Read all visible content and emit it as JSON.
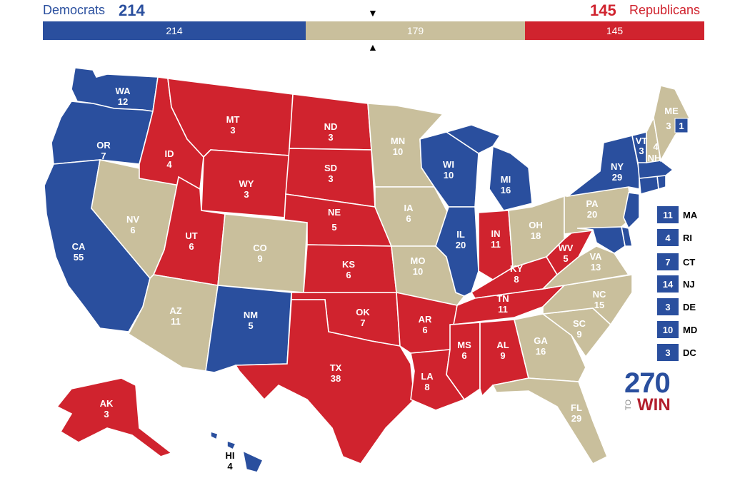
{
  "colors": {
    "dem": "#2a4f9e",
    "rep": "#d0232e",
    "tossup": "#c9bf9c"
  },
  "header": {
    "dem_label": "Democrats",
    "dem_total": "214",
    "rep_total": "145",
    "rep_label": "Republicans",
    "bar": {
      "dem": "214",
      "tossup": "179",
      "rep": "145"
    },
    "marker_top": "▼",
    "marker_bottom": "▲"
  },
  "states": {
    "WA": {
      "abbr": "WA",
      "ev": "12",
      "party": "dem"
    },
    "OR": {
      "abbr": "OR",
      "ev": "7",
      "party": "dem"
    },
    "CA": {
      "abbr": "CA",
      "ev": "55",
      "party": "dem"
    },
    "NV": {
      "abbr": "NV",
      "ev": "6",
      "party": "tossup"
    },
    "ID": {
      "abbr": "ID",
      "ev": "4",
      "party": "rep"
    },
    "MT": {
      "abbr": "MT",
      "ev": "3",
      "party": "rep"
    },
    "WY": {
      "abbr": "WY",
      "ev": "3",
      "party": "rep"
    },
    "UT": {
      "abbr": "UT",
      "ev": "6",
      "party": "rep"
    },
    "AZ": {
      "abbr": "AZ",
      "ev": "11",
      "party": "tossup"
    },
    "CO": {
      "abbr": "CO",
      "ev": "9",
      "party": "tossup"
    },
    "NM": {
      "abbr": "NM",
      "ev": "5",
      "party": "dem"
    },
    "ND": {
      "abbr": "ND",
      "ev": "3",
      "party": "rep"
    },
    "SD": {
      "abbr": "SD",
      "ev": "3",
      "party": "rep"
    },
    "NE": {
      "abbr": "NE",
      "ev": "5",
      "party": "rep"
    },
    "KS": {
      "abbr": "KS",
      "ev": "6",
      "party": "rep"
    },
    "OK": {
      "abbr": "OK",
      "ev": "7",
      "party": "rep"
    },
    "TX": {
      "abbr": "TX",
      "ev": "38",
      "party": "rep"
    },
    "MN": {
      "abbr": "MN",
      "ev": "10",
      "party": "tossup"
    },
    "IA": {
      "abbr": "IA",
      "ev": "6",
      "party": "tossup"
    },
    "MO": {
      "abbr": "MO",
      "ev": "10",
      "party": "tossup"
    },
    "AR": {
      "abbr": "AR",
      "ev": "6",
      "party": "rep"
    },
    "LA": {
      "abbr": "LA",
      "ev": "8",
      "party": "rep"
    },
    "WI": {
      "abbr": "WI",
      "ev": "10",
      "party": "dem"
    },
    "IL": {
      "abbr": "IL",
      "ev": "20",
      "party": "dem"
    },
    "MI": {
      "abbr": "MI",
      "ev": "16",
      "party": "dem"
    },
    "IN": {
      "abbr": "IN",
      "ev": "11",
      "party": "rep"
    },
    "OH": {
      "abbr": "OH",
      "ev": "18",
      "party": "tossup"
    },
    "KY": {
      "abbr": "KY",
      "ev": "8",
      "party": "rep"
    },
    "TN": {
      "abbr": "TN",
      "ev": "11",
      "party": "rep"
    },
    "MS": {
      "abbr": "MS",
      "ev": "6",
      "party": "rep"
    },
    "AL": {
      "abbr": "AL",
      "ev": "9",
      "party": "rep"
    },
    "GA": {
      "abbr": "GA",
      "ev": "16",
      "party": "tossup"
    },
    "FL": {
      "abbr": "FL",
      "ev": "29",
      "party": "tossup"
    },
    "SC": {
      "abbr": "SC",
      "ev": "9",
      "party": "tossup"
    },
    "NC": {
      "abbr": "NC",
      "ev": "15",
      "party": "tossup"
    },
    "VA": {
      "abbr": "VA",
      "ev": "13",
      "party": "tossup"
    },
    "WV": {
      "abbr": "WV",
      "ev": "5",
      "party": "rep"
    },
    "PA": {
      "abbr": "PA",
      "ev": "20",
      "party": "tossup"
    },
    "NY": {
      "abbr": "NY",
      "ev": "29",
      "party": "dem"
    },
    "VT": {
      "abbr": "VT",
      "ev": "3",
      "party": "dem"
    },
    "NH": {
      "abbr": "NH",
      "ev": "4",
      "party": "tossup"
    },
    "ME": {
      "abbr": "ME",
      "ev": "3",
      "party": "tossup",
      "district_ev": "1"
    },
    "AK": {
      "abbr": "AK",
      "ev": "3",
      "party": "rep"
    },
    "HI": {
      "abbr": "HI",
      "ev": "4",
      "party": "dem"
    }
  },
  "side_states": [
    {
      "abbr": "MA",
      "ev": "11"
    },
    {
      "abbr": "RI",
      "ev": "4"
    },
    {
      "abbr": "CT",
      "ev": "7"
    },
    {
      "abbr": "NJ",
      "ev": "14"
    },
    {
      "abbr": "DE",
      "ev": "3"
    },
    {
      "abbr": "MD",
      "ev": "10"
    },
    {
      "abbr": "DC",
      "ev": "3"
    }
  ],
  "logo": {
    "number": "270",
    "to": "TO",
    "win": "WIN"
  }
}
